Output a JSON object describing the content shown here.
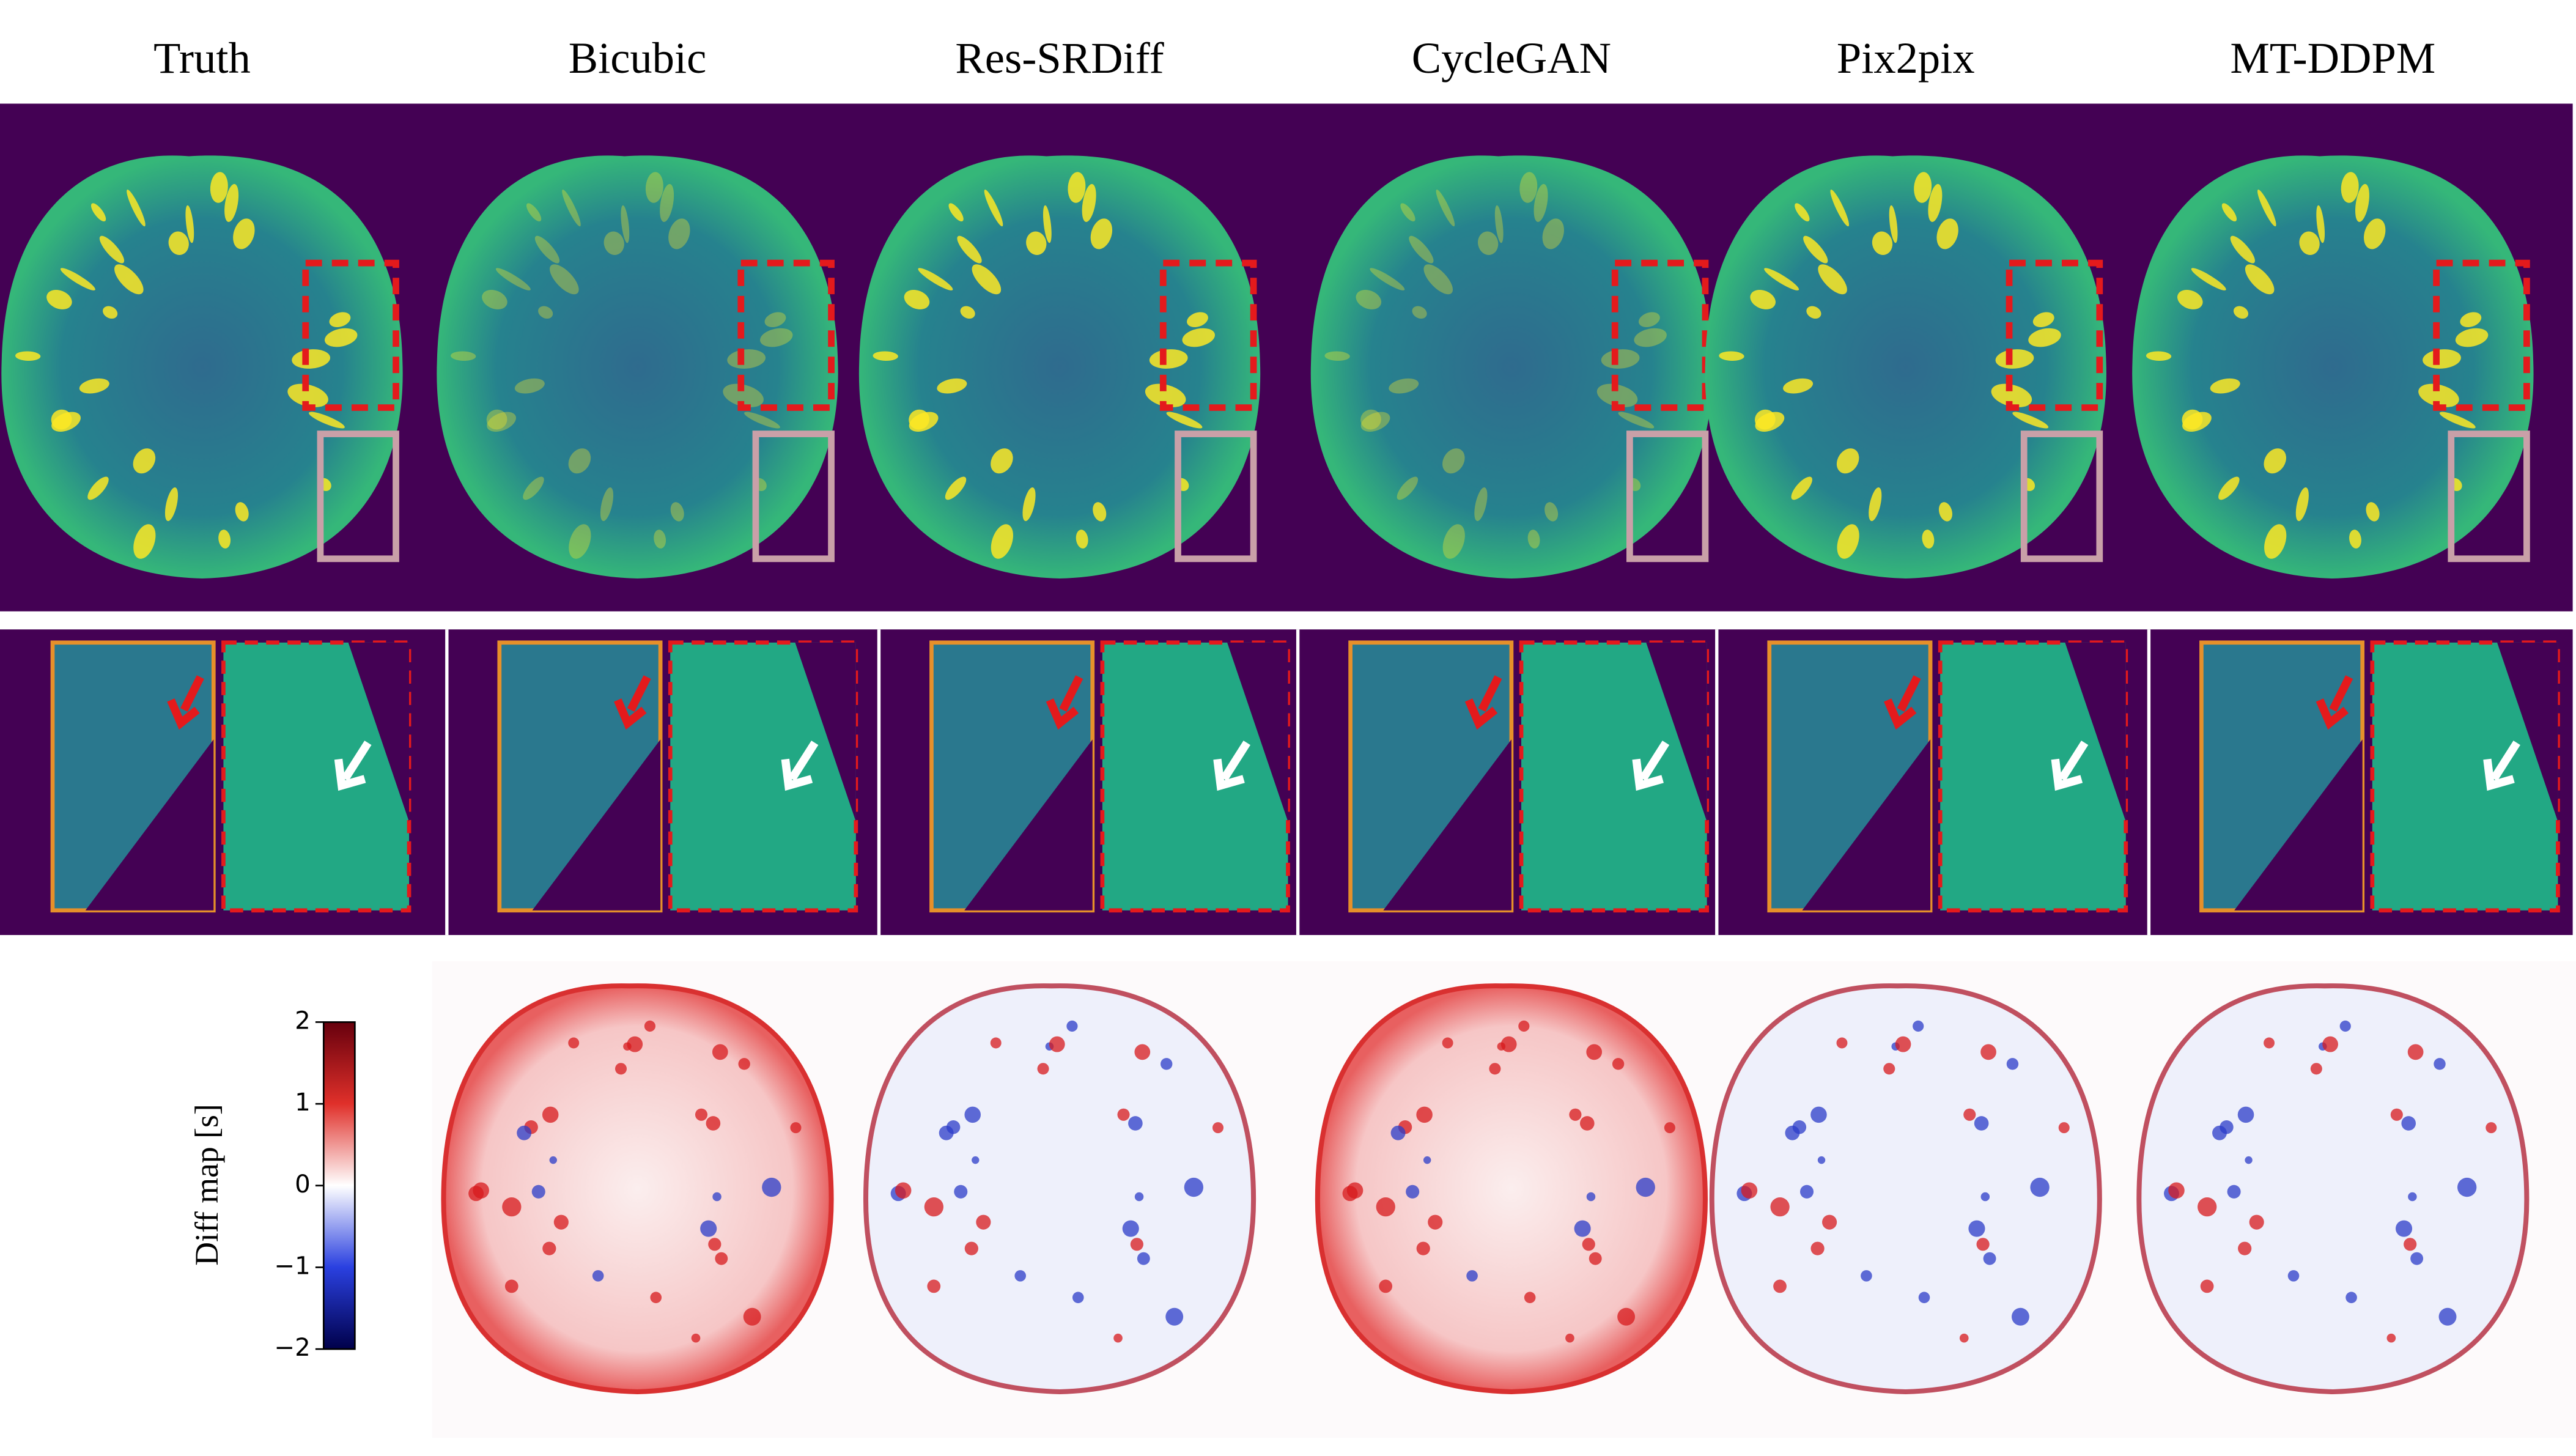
{
  "columns": [
    "Truth",
    "Bicubic",
    "Res-SRDiff",
    "CycleGAN",
    "Pix2pix",
    "MT-DDPM"
  ],
  "colorbar": {
    "label": "Diff map [s]",
    "lim": [
      -2,
      2
    ],
    "ticks": [
      2,
      1,
      0,
      {
        "value": -1,
        "label": "−1"
      },
      {
        "value": -2,
        "label": "−2"
      }
    ]
  }
}
